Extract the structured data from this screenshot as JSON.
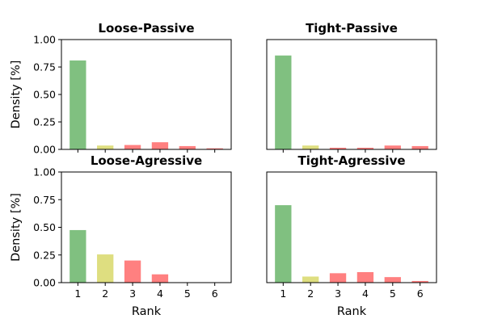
{
  "chart_data": [
    {
      "type": "bar",
      "title": "Loose-Passive",
      "categories": [
        "1",
        "2",
        "3",
        "4",
        "5",
        "6"
      ],
      "values": [
        0.81,
        0.035,
        0.04,
        0.065,
        0.03,
        0.01
      ],
      "colors": [
        "#80c080",
        "#dede80",
        "#ff8080",
        "#ff8080",
        "#ff8080",
        "#ff8080"
      ],
      "ylim": [
        0,
        1
      ],
      "yticks": [
        "0.00",
        "0.25",
        "0.50",
        "0.75",
        "1.00"
      ],
      "ylabel": "Density [%]",
      "xlabel": ""
    },
    {
      "type": "bar",
      "title": "Tight-Passive",
      "categories": [
        "1",
        "2",
        "3",
        "4",
        "5",
        "6"
      ],
      "values": [
        0.855,
        0.035,
        0.015,
        0.015,
        0.035,
        0.03
      ],
      "colors": [
        "#80c080",
        "#dede80",
        "#ff8080",
        "#ff8080",
        "#ff8080",
        "#ff8080"
      ],
      "ylim": [
        0,
        1
      ],
      "yticks": [],
      "ylabel": "",
      "xlabel": ""
    },
    {
      "type": "bar",
      "title": "Loose-Agressive",
      "categories": [
        "1",
        "2",
        "3",
        "4",
        "5",
        "6"
      ],
      "values": [
        0.475,
        0.255,
        0.2,
        0.075,
        0.0,
        0.0
      ],
      "colors": [
        "#80c080",
        "#dede80",
        "#ff8080",
        "#ff8080",
        "#ff8080",
        "#ff8080"
      ],
      "ylim": [
        0,
        1
      ],
      "yticks": [
        "0.00",
        "0.25",
        "0.50",
        "0.75",
        "1.00"
      ],
      "ylabel": "Density [%]",
      "xlabel": "Rank"
    },
    {
      "type": "bar",
      "title": "Tight-Agressive",
      "categories": [
        "1",
        "2",
        "3",
        "4",
        "5",
        "6"
      ],
      "values": [
        0.7,
        0.055,
        0.085,
        0.095,
        0.05,
        0.015
      ],
      "colors": [
        "#80c080",
        "#dede80",
        "#ff8080",
        "#ff8080",
        "#ff8080",
        "#ff8080"
      ],
      "ylim": [
        0,
        1
      ],
      "yticks": [],
      "ylabel": "",
      "xlabel": "Rank"
    }
  ]
}
